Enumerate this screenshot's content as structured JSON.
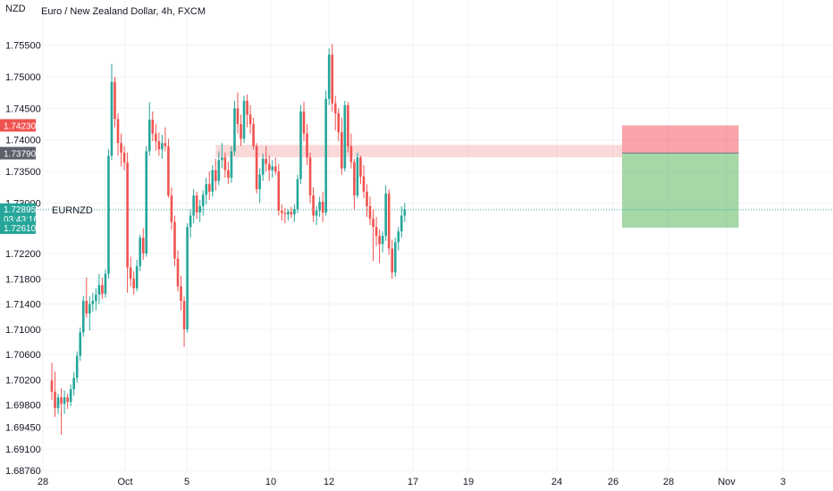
{
  "chart_data": {
    "type": "candlestick",
    "title": "Euro / New Zealand Dollar, 4h, FXCM",
    "currency": "NZD",
    "symbol": "EURNZD",
    "colors": {
      "up": "#26a69a",
      "down": "#ef5350",
      "grid": "#f0f3fa"
    },
    "y_ticks": [
      1.755,
      1.75,
      1.745,
      1.74,
      1.735,
      1.73,
      1.722,
      1.718,
      1.714,
      1.71,
      1.706,
      1.702,
      1.698,
      1.6945,
      1.691,
      1.6876
    ],
    "y_tick_labels": [
      "1.75500",
      "1.75000",
      "1.74500",
      "1.74000",
      "1.73500",
      "1.73000",
      "1.72200",
      "1.71800",
      "1.71400",
      "1.71000",
      "1.70600",
      "1.70200",
      "1.69800",
      "1.69450",
      "1.69100",
      "1.68760"
    ],
    "ylim": [
      1.6865,
      1.758
    ],
    "x_tick_labels": [
      "28",
      "Oct",
      "5",
      "10",
      "12",
      "17",
      "19",
      "24",
      "26",
      "28",
      "Nov",
      "3"
    ],
    "price_tags": [
      {
        "label": "1.74230",
        "value": 1.7423,
        "color": "#ef5350"
      },
      {
        "label": "1.73790",
        "value": 1.7379,
        "color": "#5d606b"
      },
      {
        "label": "1.72895",
        "sublabel": "03:43:16",
        "value": 1.72895,
        "color": "#26a69a",
        "symbol_tag": "EURNZD"
      },
      {
        "label": "1.72610",
        "value": 1.7261,
        "color": "#26a69a"
      }
    ],
    "resistance_zone": {
      "top": 1.7392,
      "bottom": 1.73725,
      "from_bar": 52,
      "to_bar": 181,
      "color": "rgba(239,83,80,0.22)"
    },
    "position": {
      "stop": 1.7423,
      "entry": 1.7379,
      "target": 1.7261,
      "from_bar": 181,
      "to_bar": 218,
      "loss_color": "rgba(242,54,69,0.45)",
      "profit_color": "rgba(76,175,80,0.50)"
    },
    "last_price": 1.72895,
    "candles": [
      [
        1.7019,
        1.7047,
        1.6988,
        1.7001
      ],
      [
        1.7001,
        1.7033,
        1.6961,
        1.6975
      ],
      [
        1.6975,
        1.6998,
        1.6966,
        1.6992
      ],
      [
        1.6992,
        1.7006,
        1.6933,
        1.6982
      ],
      [
        1.6982,
        1.7003,
        1.6966,
        1.6992
      ],
      [
        1.6992,
        1.6998,
        1.6974,
        1.6985
      ],
      [
        1.6985,
        1.7013,
        1.6978,
        1.7005
      ],
      [
        1.7005,
        1.7032,
        1.6995,
        1.7023
      ],
      [
        1.7023,
        1.7065,
        1.7015,
        1.7058
      ],
      [
        1.7058,
        1.7103,
        1.705,
        1.7095
      ],
      [
        1.7095,
        1.7153,
        1.7088,
        1.7145
      ],
      [
        1.7145,
        1.7182,
        1.7118,
        1.7125
      ],
      [
        1.7125,
        1.7152,
        1.7098,
        1.714
      ],
      [
        1.714,
        1.7158,
        1.7128,
        1.7145
      ],
      [
        1.7145,
        1.7165,
        1.713,
        1.7155
      ],
      [
        1.7155,
        1.7188,
        1.714,
        1.717
      ],
      [
        1.717,
        1.7182,
        1.7148,
        1.7156
      ],
      [
        1.7156,
        1.7195,
        1.715,
        1.7188
      ],
      [
        1.7188,
        1.7385,
        1.718,
        1.7375
      ],
      [
        1.7375,
        1.752,
        1.7368,
        1.7492
      ],
      [
        1.7492,
        1.75,
        1.742,
        1.7433
      ],
      [
        1.7433,
        1.7442,
        1.7375,
        1.7395
      ],
      [
        1.7395,
        1.741,
        1.7358,
        1.738
      ],
      [
        1.738,
        1.739,
        1.7352,
        1.7364
      ],
      [
        1.7364,
        1.738,
        1.7158,
        1.7198
      ],
      [
        1.7198,
        1.7215,
        1.7168,
        1.718
      ],
      [
        1.718,
        1.7192,
        1.7155,
        1.7165
      ],
      [
        1.7165,
        1.721,
        1.716,
        1.72
      ],
      [
        1.72,
        1.725,
        1.7192,
        1.7245
      ],
      [
        1.7245,
        1.726,
        1.721,
        1.722
      ],
      [
        1.722,
        1.739,
        1.7215,
        1.7382
      ],
      [
        1.7382,
        1.746,
        1.7375,
        1.7432
      ],
      [
        1.7432,
        1.7445,
        1.7398,
        1.741
      ],
      [
        1.741,
        1.7425,
        1.7383,
        1.7398
      ],
      [
        1.7398,
        1.7412,
        1.7375,
        1.7385
      ],
      [
        1.7385,
        1.7408,
        1.737,
        1.7395
      ],
      [
        1.7395,
        1.742,
        1.7382,
        1.739
      ],
      [
        1.739,
        1.7402,
        1.7308,
        1.7312
      ],
      [
        1.7312,
        1.7325,
        1.7258,
        1.727
      ],
      [
        1.727,
        1.728,
        1.72,
        1.7212
      ],
      [
        1.7212,
        1.7225,
        1.716,
        1.7168
      ],
      [
        1.7168,
        1.7185,
        1.713,
        1.7145
      ],
      [
        1.7145,
        1.7152,
        1.7072,
        1.71
      ],
      [
        1.71,
        1.7268,
        1.7095,
        1.7262
      ],
      [
        1.7262,
        1.729,
        1.7245,
        1.728
      ],
      [
        1.728,
        1.7322,
        1.7268,
        1.7312
      ],
      [
        1.7312,
        1.7318,
        1.7275,
        1.7285
      ],
      [
        1.7285,
        1.7305,
        1.727,
        1.7295
      ],
      [
        1.7295,
        1.732,
        1.728,
        1.7313
      ],
      [
        1.7313,
        1.734,
        1.7298,
        1.733
      ],
      [
        1.733,
        1.735,
        1.7305,
        1.7318
      ],
      [
        1.7318,
        1.736,
        1.731,
        1.7352
      ],
      [
        1.7352,
        1.737,
        1.732,
        1.7335
      ],
      [
        1.7335,
        1.7382,
        1.7328,
        1.7368
      ],
      [
        1.7368,
        1.7395,
        1.7355,
        1.7372
      ],
      [
        1.7372,
        1.738,
        1.734,
        1.7352
      ],
      [
        1.7352,
        1.7365,
        1.733,
        1.734
      ],
      [
        1.734,
        1.739,
        1.7332,
        1.7382
      ],
      [
        1.7382,
        1.7462,
        1.7375,
        1.745
      ],
      [
        1.745,
        1.7475,
        1.741,
        1.7425
      ],
      [
        1.7425,
        1.744,
        1.739,
        1.7402
      ],
      [
        1.7402,
        1.747,
        1.7395,
        1.7462
      ],
      [
        1.7462,
        1.7472,
        1.742,
        1.744
      ],
      [
        1.744,
        1.7455,
        1.741,
        1.7425
      ],
      [
        1.7425,
        1.7435,
        1.7385,
        1.739
      ],
      [
        1.739,
        1.7395,
        1.7315,
        1.7322
      ],
      [
        1.7322,
        1.7355,
        1.73,
        1.7345
      ],
      [
        1.7345,
        1.7378,
        1.7335,
        1.737
      ],
      [
        1.737,
        1.739,
        1.735,
        1.7362
      ],
      [
        1.7362,
        1.7375,
        1.7335,
        1.7352
      ],
      [
        1.7352,
        1.7368,
        1.734,
        1.7358
      ],
      [
        1.7358,
        1.7372,
        1.7345,
        1.735
      ],
      [
        1.735,
        1.7362,
        1.728,
        1.7288
      ],
      [
        1.7288,
        1.7298,
        1.7272,
        1.7284
      ],
      [
        1.7284,
        1.7292,
        1.7268,
        1.7282
      ],
      [
        1.7282,
        1.729,
        1.7272,
        1.7286
      ],
      [
        1.7286,
        1.7294,
        1.7276,
        1.7282
      ],
      [
        1.7282,
        1.7298,
        1.727,
        1.729
      ],
      [
        1.729,
        1.7345,
        1.7284,
        1.7338
      ],
      [
        1.7338,
        1.7455,
        1.733,
        1.7445
      ],
      [
        1.7445,
        1.746,
        1.7398,
        1.741
      ],
      [
        1.741,
        1.7425,
        1.736,
        1.7372
      ],
      [
        1.7372,
        1.738,
        1.73,
        1.7312
      ],
      [
        1.7312,
        1.7325,
        1.727,
        1.728
      ],
      [
        1.728,
        1.7295,
        1.7265,
        1.7288
      ],
      [
        1.7288,
        1.731,
        1.7278,
        1.7302
      ],
      [
        1.7302,
        1.7318,
        1.727,
        1.7285
      ],
      [
        1.7285,
        1.7478,
        1.728,
        1.7465
      ],
      [
        1.7465,
        1.7545,
        1.7455,
        1.7535
      ],
      [
        1.7535,
        1.7552,
        1.7445,
        1.7458
      ],
      [
        1.7458,
        1.747,
        1.7415,
        1.7442
      ],
      [
        1.7442,
        1.745,
        1.7398,
        1.7412
      ],
      [
        1.7412,
        1.7435,
        1.7345,
        1.7355
      ],
      [
        1.7355,
        1.7462,
        1.735,
        1.7455
      ],
      [
        1.7455,
        1.746,
        1.738,
        1.739
      ],
      [
        1.739,
        1.741,
        1.7355,
        1.7365
      ],
      [
        1.7365,
        1.737,
        1.729,
        1.7312
      ],
      [
        1.7312,
        1.738,
        1.7308,
        1.7372
      ],
      [
        1.7372,
        1.7375,
        1.733,
        1.7342
      ],
      [
        1.7342,
        1.736,
        1.7308,
        1.7318
      ],
      [
        1.7318,
        1.733,
        1.7278,
        1.7295
      ],
      [
        1.7295,
        1.731,
        1.7265,
        1.7275
      ],
      [
        1.7275,
        1.729,
        1.7208,
        1.7262
      ],
      [
        1.7262,
        1.7278,
        1.7232,
        1.7248
      ],
      [
        1.7248,
        1.7258,
        1.7205,
        1.7235
      ],
      [
        1.7235,
        1.7255,
        1.7222,
        1.7248
      ],
      [
        1.7248,
        1.7328,
        1.724,
        1.7315
      ],
      [
        1.7315,
        1.7322,
        1.7218,
        1.7228
      ],
      [
        1.7228,
        1.7242,
        1.718,
        1.719
      ],
      [
        1.719,
        1.7245,
        1.7183,
        1.7238
      ],
      [
        1.7238,
        1.7262,
        1.7225,
        1.7255
      ],
      [
        1.7255,
        1.7295,
        1.7245,
        1.728
      ],
      [
        1.728,
        1.73,
        1.727,
        1.729
      ]
    ]
  }
}
